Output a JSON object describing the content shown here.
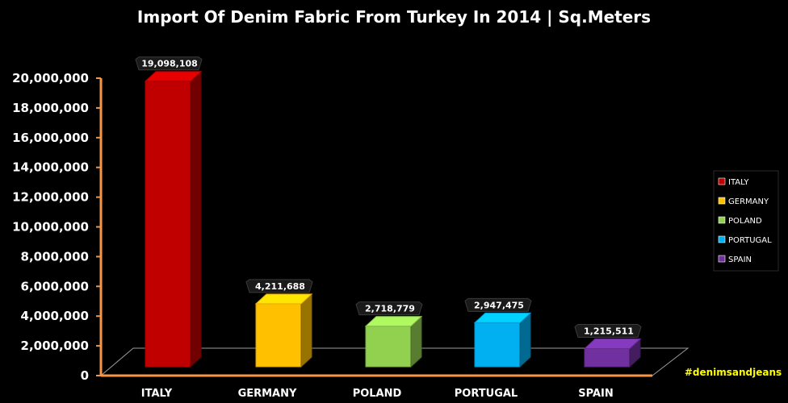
{
  "chart_data": {
    "type": "bar",
    "title": "Import Of Denim Fabric From Turkey In 2014 | Sq.Meters",
    "categories": [
      "ITALY",
      "GERMANY",
      "POLAND",
      "PORTUGAL",
      "SPAIN"
    ],
    "values": [
      19098108,
      4211688,
      2718779,
      2947475,
      1215511
    ],
    "value_labels": [
      "19,098,108",
      "4,211,688",
      "2,718,779",
      "2,947,475",
      "1,215,511"
    ],
    "colors": [
      "#c00000",
      "#ffc000",
      "#92d050",
      "#00b0f0",
      "#7030a0"
    ],
    "ylim": [
      0,
      20000000
    ],
    "yticks": [
      {
        "value": 0,
        "label": "0"
      },
      {
        "value": 2000000,
        "label": "2,000,000"
      },
      {
        "value": 4000000,
        "label": "4,000,000"
      },
      {
        "value": 6000000,
        "label": "6,000,000"
      },
      {
        "value": 8000000,
        "label": "8,000,000"
      },
      {
        "value": 10000000,
        "label": "10,000,000"
      },
      {
        "value": 12000000,
        "label": "12,000,000"
      },
      {
        "value": 14000000,
        "label": "14,000,000"
      },
      {
        "value": 16000000,
        "label": "16,000,000"
      },
      {
        "value": 18000000,
        "label": "18,000,000"
      },
      {
        "value": 20000000,
        "label": "20,000,000"
      }
    ],
    "legend": {
      "placement": "right",
      "entries": [
        "ITALY",
        "GERMANY",
        "POLAND",
        "PORTUGAL",
        "SPAIN"
      ]
    },
    "axis_color": "#f79646",
    "grid": false,
    "watermark": "#denimsandjeans"
  }
}
